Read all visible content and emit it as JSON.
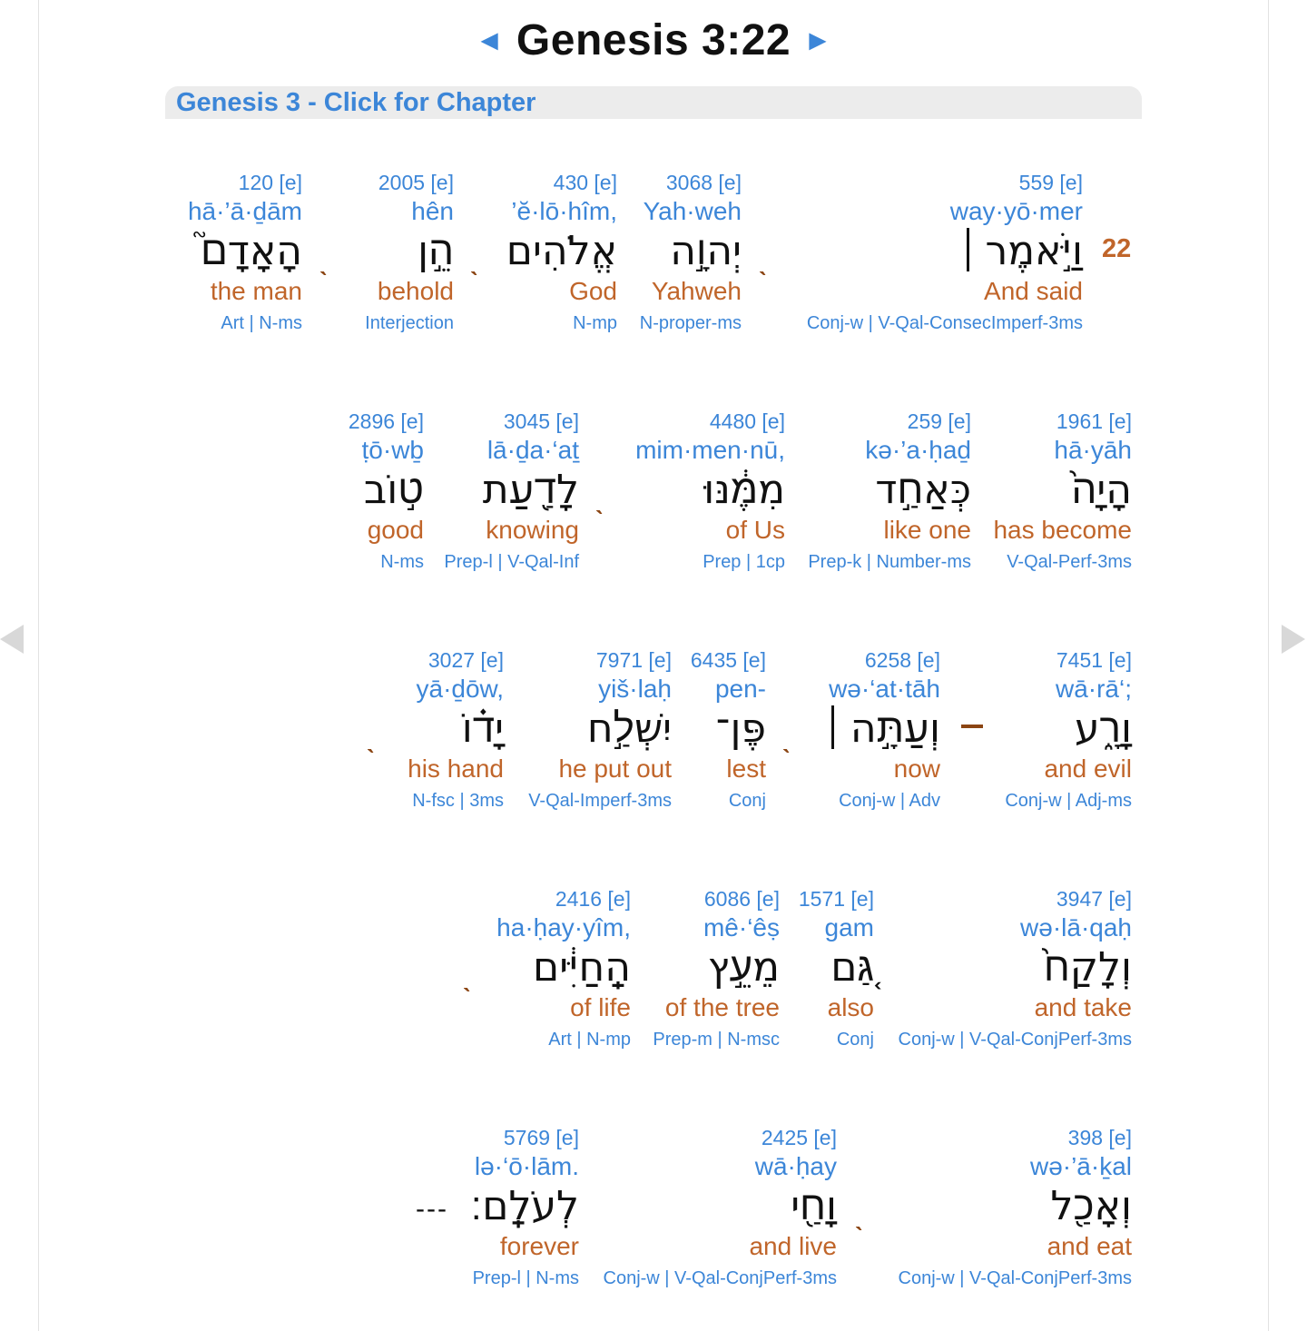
{
  "header": {
    "prev_arrow": "◄",
    "title": "Genesis 3:22",
    "next_arrow": "►",
    "chapter_link": "Genesis 3 - Click for Chapter"
  },
  "verse_number": "22",
  "rows": [
    {
      "words": [
        {
          "num": "120 [e]",
          "translit": "hā·’ā·ḏām",
          "hebrew": "הָאָדָם֮",
          "eng": "the man",
          "parse": "Art | N-ms"
        },
        {
          "num": "2005 [e]",
          "translit": "hên",
          "hebrew": "הֵ֣ן",
          "eng": "behold",
          "parse": "Interjection"
        },
        {
          "num": "430 [e]",
          "translit": "’ĕ·lō·hîm,",
          "hebrew": "אֱלֹהִים",
          "eng": "God",
          "parse": "N-mp"
        },
        {
          "num": "3068 [e]",
          "translit": "Yah·weh",
          "hebrew": "יְהוָ֣ה",
          "eng": "Yahweh",
          "parse": "N-proper-ms"
        },
        {
          "num": "559 [e]",
          "translit": "way·yō·mer",
          "hebrew": "וַיֹּ֣אמֶר",
          "eng": "And said",
          "parse": "Conj-w | V-Qal-ConsecImperf-3ms"
        }
      ]
    },
    {
      "words": [
        {
          "num": "2896 [e]",
          "translit": "ṭō·wḇ",
          "hebrew": "ט֣וֹב",
          "eng": "good",
          "parse": "N-ms"
        },
        {
          "num": "3045 [e]",
          "translit": "lā·ḏa·‘aṯ",
          "hebrew": "לָדַ֖עַת",
          "eng": "knowing",
          "parse": "Prep-l | V-Qal-Inf"
        },
        {
          "num": "4480 [e]",
          "translit": "mim·men·nū,",
          "hebrew": "מִמֶּ֔נּוּ",
          "eng": "of Us",
          "parse": "Prep | 1cp"
        },
        {
          "num": "259 [e]",
          "translit": "kə·’a·ḥaḏ",
          "hebrew": "כְּאַחַ֣ד",
          "eng": "like one",
          "parse": "Prep-k | Number-ms"
        },
        {
          "num": "1961 [e]",
          "translit": "hā·yāh",
          "hebrew": "הָיָה֙",
          "eng": "has become",
          "parse": "V-Qal-Perf-3ms"
        }
      ]
    },
    {
      "words": [
        {
          "num": "3027 [e]",
          "translit": "yā·ḏōw,",
          "hebrew": "יָד֗וֹ",
          "eng": "his hand",
          "parse": "N-fsc | 3ms"
        },
        {
          "num": "7971 [e]",
          "translit": "yiš·laḥ",
          "hebrew": "יִשְׁלַ֣ח",
          "eng": "he put out",
          "parse": "V-Qal-Imperf-3ms"
        },
        {
          "num": "6435 [e]",
          "translit": "pen-",
          "hebrew": "פֶּן־",
          "eng": "lest",
          "parse": "Conj"
        },
        {
          "num": "6258 [e]",
          "translit": "wə·‘at·tāh",
          "hebrew": "וְעַתָּ֣ה",
          "eng": "now",
          "parse": "Conj-w | Adv"
        },
        {
          "num": "7451 [e]",
          "translit": "wā·rā‘;",
          "hebrew": "וָרָ֑ע",
          "eng": "and evil",
          "parse": "Conj-w | Adj-ms"
        }
      ]
    },
    {
      "words": [
        {
          "num": "2416 [e]",
          "translit": "ha·ḥay·yîm,",
          "hebrew": "הַֽחַיִּ֔ים",
          "eng": "of life",
          "parse": "Art | N-mp"
        },
        {
          "num": "6086 [e]",
          "translit": "mê·‘êṣ",
          "hebrew": "מֵעֵ֣ץ",
          "eng": "of the tree",
          "parse": "Prep-m | N-msc"
        },
        {
          "num": "1571 [e]",
          "translit": "gam",
          "hebrew": "גַּ֚ם",
          "eng": "also",
          "parse": "Conj"
        },
        {
          "num": "3947 [e]",
          "translit": "wə·lā·qaḥ",
          "hebrew": "וְלָקַח֙",
          "eng": "and take",
          "parse": "Conj-w | V-Qal-ConjPerf-3ms"
        }
      ]
    },
    {
      "words": [
        {
          "num": "5769 [e]",
          "translit": "lə·‘ō·lām.",
          "hebrew": "לְעֹלָֽם׃",
          "eng": "forever",
          "parse": "Prep-l | N-ms"
        },
        {
          "num": "2425 [e]",
          "translit": "wā·ḥay",
          "hebrew": "וָחַ֖י",
          "eng": "and live",
          "parse": "Conj-w | V-Qal-ConjPerf-3ms"
        },
        {
          "num": "398 [e]",
          "translit": "wə·’ā·ḵal",
          "hebrew": "וְאָכַ֖ל",
          "eng": "and eat",
          "parse": "Conj-w | V-Qal-ConjPerf-3ms"
        }
      ],
      "end_marker": "---"
    }
  ],
  "colors": {
    "link_blue": "#3c86d8",
    "gloss_orange": "#c0652a",
    "separator_brown": "#8b4513",
    "hebrew_text": "#111111"
  }
}
